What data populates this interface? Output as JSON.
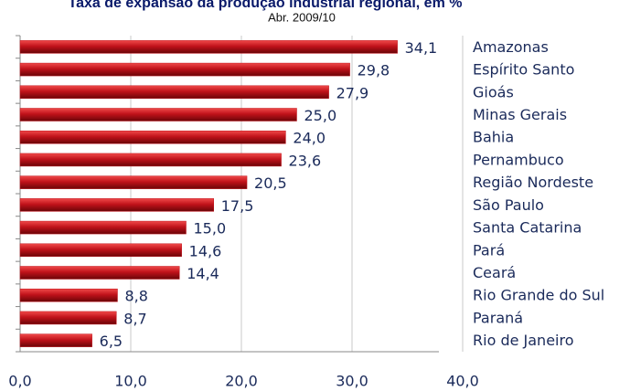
{
  "chart_data": {
    "type": "barh",
    "title": "Taxa de expansão da produção industrial regional, em %",
    "subtitle": "Abr. 2009/10",
    "categories": [
      "Amazonas",
      "Espírito Santo",
      "Gioás",
      "Minas Gerais",
      "Bahia",
      "Pernambuco",
      "Região Nordeste",
      "São Paulo",
      "Santa Catarina",
      "Pará",
      "Ceará",
      "Rio Grande do Sul",
      "Paraná",
      "Rio de Janeiro"
    ],
    "values": [
      34.1,
      29.8,
      27.9,
      25.0,
      24.0,
      23.6,
      20.5,
      17.5,
      15.0,
      14.6,
      14.4,
      8.8,
      8.7,
      6.5
    ],
    "value_labels": [
      "34,1",
      "29,8",
      "27,9",
      "25,0",
      "24,0",
      "23,6",
      "20,5",
      "17,5",
      "15,0",
      "14,6",
      "14,4",
      "8,8",
      "8,7",
      "6,5"
    ],
    "color": "#c0121a",
    "xlim": [
      0,
      40
    ],
    "xticks": [
      {
        "value": 0,
        "label": "0,0"
      },
      {
        "value": 10,
        "label": "10,0"
      },
      {
        "value": 20,
        "label": "20,0"
      },
      {
        "value": 30,
        "label": "30,0"
      },
      {
        "value": 40,
        "label": "40,0"
      }
    ],
    "grid": true
  }
}
